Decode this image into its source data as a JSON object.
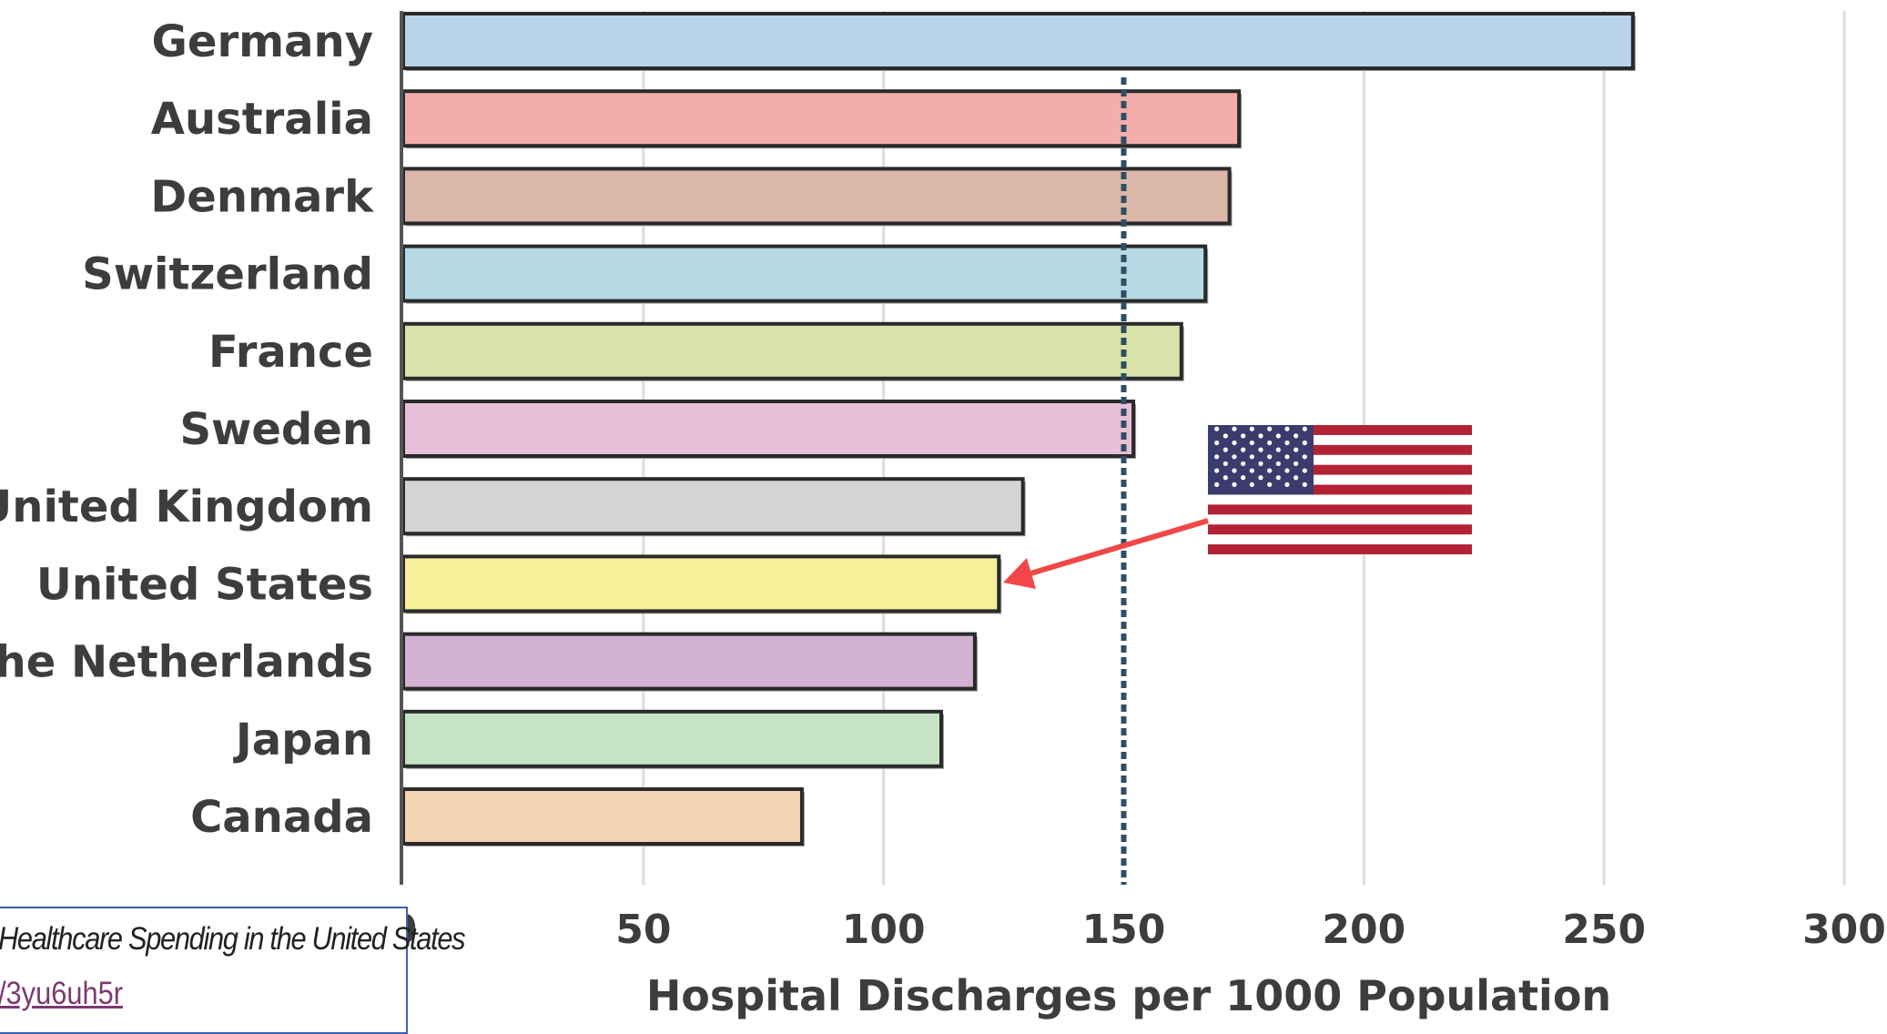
{
  "chart_data": {
    "type": "bar",
    "orientation": "horizontal",
    "categories": [
      "Germany",
      "Australia",
      "Denmark",
      "Switzerland",
      "France",
      "Sweden",
      "United Kingdom",
      "United States",
      "The Netherlands",
      "Japan",
      "Canada"
    ],
    "values": [
      256,
      174,
      172,
      167,
      162,
      152,
      129,
      124,
      119,
      112,
      83
    ],
    "colors": [
      "#b8d3ea",
      "#f3adab",
      "#dcb8aa",
      "#b6d9e3",
      "#d8e3a9",
      "#e8bfd9",
      "#d4d4d4",
      "#f6f19a",
      "#d3b1d3",
      "#c6e4c4",
      "#f3d3b2"
    ],
    "xlabel": "Hospital Discharges per 1000 Population",
    "xlim": [
      0,
      300
    ],
    "xticks": [
      0,
      50,
      100,
      150,
      200,
      250,
      300
    ],
    "reference_line": 150,
    "grid": "vertical",
    "annotation": {
      "type": "arrow",
      "target": "United States",
      "icon": "us-flag-icon",
      "color": "#f04848"
    }
  },
  "source": {
    "text": "Healthcare Spending in the United States",
    "link": "/3yu6uh5r"
  }
}
